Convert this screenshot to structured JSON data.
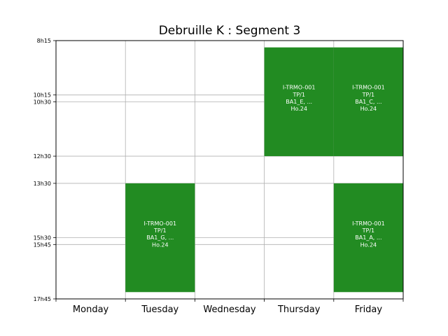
{
  "chart_data": {
    "type": "timetable",
    "title": "Debruille K : Segment 3",
    "days": [
      "Monday",
      "Tuesday",
      "Wednesday",
      "Thursday",
      "Friday"
    ],
    "time_range": [
      "8h15",
      "17h45"
    ],
    "y_ticks": [
      "8h15",
      "10h15",
      "10h30",
      "12h30",
      "13h30",
      "15h30",
      "15h45",
      "17h45"
    ],
    "grid": true,
    "bar_color": "#228b22",
    "events": [
      {
        "day": "Thursday",
        "start": "8h30",
        "end": "12h30",
        "lines": [
          "I-TRMO-001",
          "TP/1",
          "BA1_E, ...",
          "Ho.24"
        ]
      },
      {
        "day": "Friday",
        "start": "8h30",
        "end": "12h30",
        "lines": [
          "I-TRMO-001",
          "TP/1",
          "BA1_C, ...",
          "Ho.24"
        ]
      },
      {
        "day": "Tuesday",
        "start": "13h30",
        "end": "17h30",
        "lines": [
          "I-TRMO-001",
          "TP/1",
          "BA1_G, ...",
          "Ho.24"
        ]
      },
      {
        "day": "Friday",
        "start": "13h30",
        "end": "17h30",
        "lines": [
          "I-TRMO-001",
          "TP/1",
          "BA1_A, ...",
          "Ho.24"
        ]
      }
    ]
  }
}
